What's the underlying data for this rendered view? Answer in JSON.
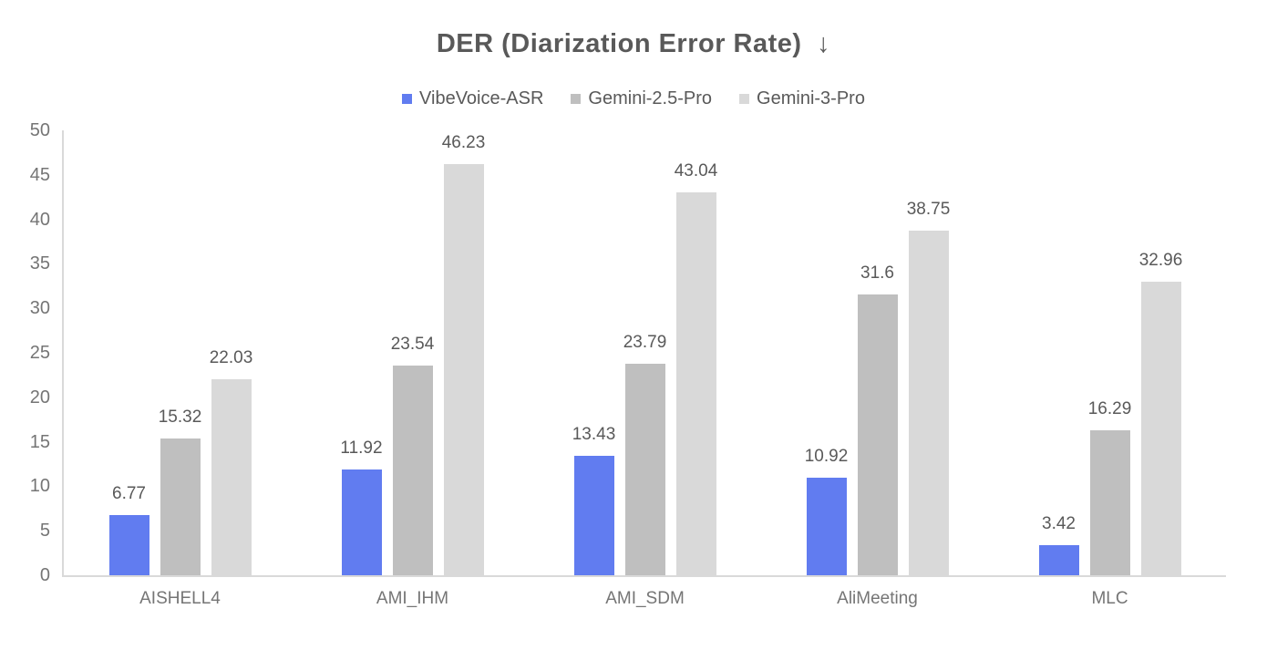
{
  "chart_data": {
    "type": "bar",
    "title": "DER (Diarization Error Rate)",
    "title_arrow": "↓",
    "xlabel": "",
    "ylabel": "",
    "categories": [
      "AISHELL4",
      "AMI_IHM",
      "AMI_SDM",
      "AliMeeting",
      "MLC"
    ],
    "series": [
      {
        "name": "VibeVoice-ASR",
        "color": "#617CF0",
        "values": [
          6.77,
          11.92,
          13.43,
          10.92,
          3.42
        ]
      },
      {
        "name": "Gemini-2.5-Pro",
        "color": "#BFBFBF",
        "values": [
          15.32,
          23.54,
          23.79,
          31.6,
          16.29
        ]
      },
      {
        "name": "Gemini-3-Pro",
        "color": "#D9D9D9",
        "values": [
          22.03,
          46.23,
          43.04,
          38.75,
          32.96
        ]
      }
    ],
    "ylim": [
      0,
      50
    ],
    "yticks": [
      0,
      5,
      10,
      15,
      20,
      25,
      30,
      35,
      40,
      45,
      50
    ],
    "grid": false,
    "legend_position": "top",
    "colors": {
      "title_text": "#595959",
      "legend_text": "#595959",
      "data_label_text": "#595959",
      "axis_tick_text": "#757575",
      "axis_line": "#D9D9D9",
      "background": "#FFFFFF"
    }
  }
}
